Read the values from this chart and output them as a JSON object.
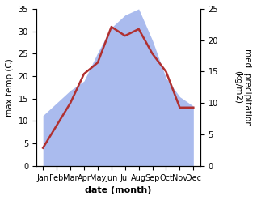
{
  "months": [
    "Jan",
    "Feb",
    "Mar",
    "Apr",
    "May",
    "Jun",
    "Jul",
    "Aug",
    "Sep",
    "Oct",
    "Nov",
    "Dec"
  ],
  "x": [
    1,
    2,
    3,
    4,
    5,
    6,
    7,
    8,
    9,
    10,
    11,
    12
  ],
  "temp": [
    4.0,
    9.0,
    14.0,
    20.5,
    23.0,
    31.0,
    29.0,
    30.5,
    25.0,
    21.0,
    13.0,
    13.0
  ],
  "precip": [
    8.0,
    10.0,
    12.0,
    13.5,
    18.0,
    22.0,
    24.0,
    25.0,
    20.0,
    14.0,
    11.0,
    9.5
  ],
  "temp_color": "#b03030",
  "precip_color": "#aabbee",
  "ylabel_left": "max temp (C)",
  "ylabel_right": "med. precipitation\n(kg/m2)",
  "xlabel": "date (month)",
  "ylim_left": [
    0,
    35
  ],
  "ylim_right": [
    0,
    25
  ],
  "line_width": 1.8,
  "xlabel_fontsize": 8,
  "ylabel_fontsize": 7.5,
  "tick_fontsize": 7
}
